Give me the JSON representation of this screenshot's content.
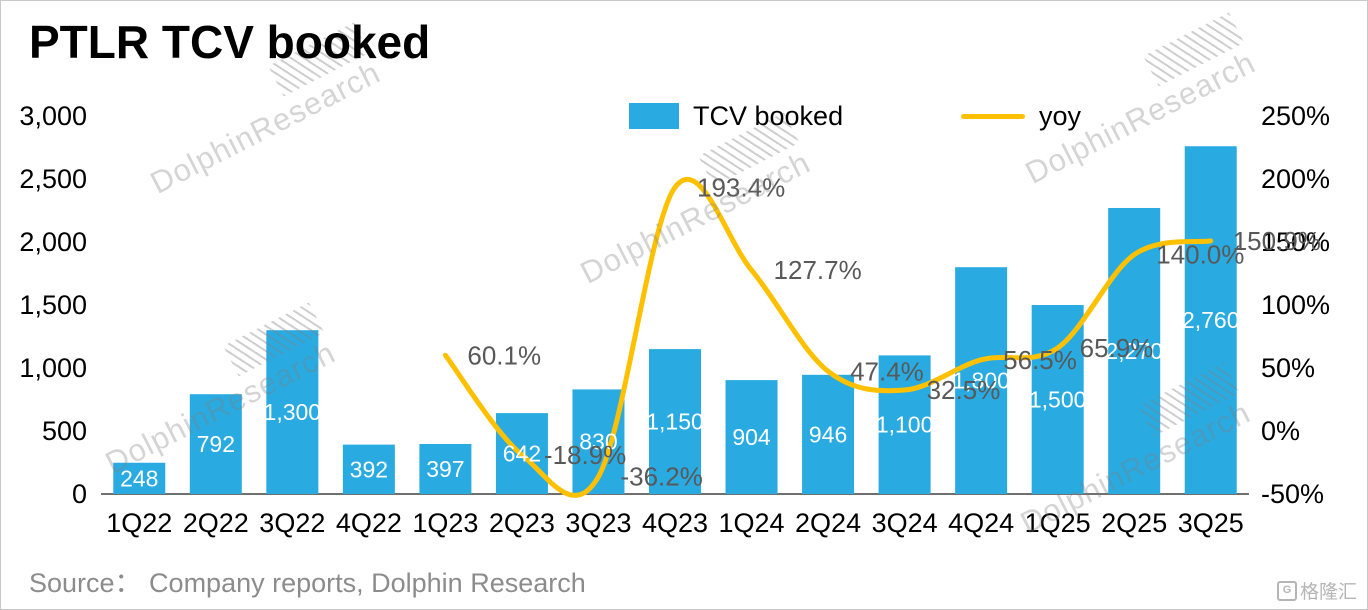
{
  "title": "PTLR TCV booked",
  "watermark": "DolphinResearch",
  "footer": {
    "source": "Source： Company reports, Dolphin Research",
    "logo_mark": "G",
    "logo_text": "格隆汇"
  },
  "chart_data": {
    "type": "bar",
    "title": "PTLR TCV booked",
    "categories": [
      "1Q22",
      "2Q22",
      "3Q22",
      "4Q22",
      "1Q23",
      "2Q23",
      "3Q23",
      "4Q23",
      "1Q24",
      "2Q24",
      "3Q24",
      "4Q24",
      "1Q25",
      "2Q25",
      "3Q25"
    ],
    "series": [
      {
        "name": "TCV booked",
        "type": "bar",
        "color": "#29abe2",
        "values": [
          248,
          792,
          1300,
          392,
          397,
          642,
          830,
          1150,
          904,
          946,
          1100,
          1800,
          1500,
          2270,
          2760
        ],
        "labels": [
          "248",
          "792",
          "1,300",
          "392",
          "397",
          "642",
          "830",
          "1,150",
          "904",
          "946",
          "1,100",
          "1,800",
          "1,500",
          "2,270",
          "2,760"
        ]
      },
      {
        "name": "yoy",
        "type": "line",
        "color": "#ffc000",
        "values": [
          null,
          null,
          null,
          null,
          60.1,
          -18.9,
          -36.2,
          193.4,
          127.7,
          47.4,
          32.5,
          56.5,
          65.9,
          140.0,
          150.9
        ],
        "labels": [
          null,
          null,
          null,
          null,
          "60.1%",
          "-18.9%",
          "-36.2%",
          "193.4%",
          "127.7%",
          "47.4%",
          "32.5%",
          "56.5%",
          "65.9%",
          "140.0%",
          "150.9%"
        ]
      }
    ],
    "axis_left": {
      "min": 0,
      "max": 3000,
      "tick_values": [
        0,
        500,
        1000,
        1500,
        2000,
        2500,
        3000
      ],
      "tick_labels": [
        "0",
        "500",
        "1,000",
        "1,500",
        "2,000",
        "2,500",
        "3,000"
      ]
    },
    "axis_right": {
      "min": -50,
      "max": 250,
      "tick_values": [
        -50,
        0,
        50,
        100,
        150,
        200,
        250
      ],
      "tick_labels": [
        "-50%",
        "0%",
        "50%",
        "100%",
        "150%",
        "200%",
        "250%"
      ]
    },
    "grid": false,
    "legend_position": "top",
    "value_label_color": "#ffffff",
    "line_label_color": "#595959"
  }
}
